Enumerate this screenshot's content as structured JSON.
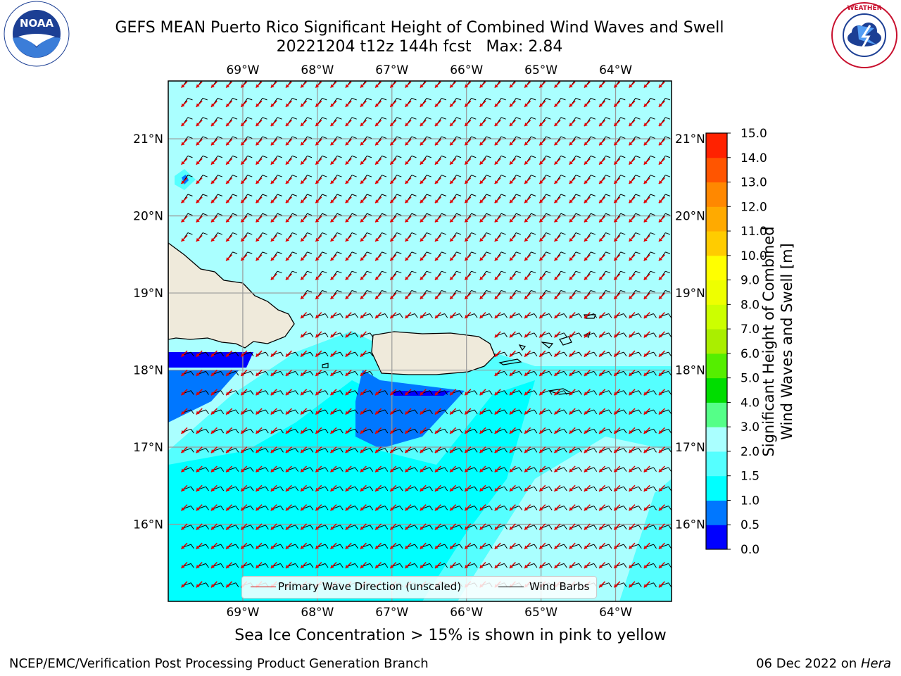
{
  "title": {
    "line1": "GEFS MEAN Puerto Rico Significant Height of Combined Wind Waves and Swell",
    "line2": "20221204 t12z 144h fcst   Max: 2.84"
  },
  "logos": {
    "left": "NOAA",
    "left_ring_text": "NATIONAL OCEANIC AND ATMOSPHERIC ADMINISTRATION · U.S. DEPARTMENT OF COMMERCE",
    "right_ring_text": "NATIONAL WEATHER SERVICE"
  },
  "map": {
    "lon_labels": [
      "69°W",
      "68°W",
      "67°W",
      "66°W",
      "65°W",
      "64°W"
    ],
    "lat_labels": [
      "21°N",
      "20°N",
      "19°N",
      "18°N",
      "17°N",
      "16°N"
    ],
    "lon_ticks": [
      -69,
      -68,
      -67,
      -66,
      -65,
      -64
    ],
    "lat_ticks": [
      21,
      20,
      19,
      18,
      17,
      16
    ],
    "extent": {
      "lon_min": -70.0,
      "lon_max": -63.25,
      "lat_min": 15.0,
      "lat_max": 21.75
    },
    "ocean_color": "#aaffff",
    "land_color": "#efeadb",
    "wave_arrow_color": "#e00000",
    "barb_color": "#000000",
    "grid": true
  },
  "legend": {
    "wave_label": "Primary Wave Direction (unscaled)",
    "barb_label": "Wind Barbs"
  },
  "colorbar": {
    "label_line1": "Significant Height of Combined",
    "label_line2": "Wind Waves and Swell [m]",
    "bounds": [
      "0.0",
      "0.5",
      "1.0",
      "1.5",
      "2.0",
      "3.0",
      "4.0",
      "5.0",
      "6.0",
      "7.0",
      "8.0",
      "9.0",
      "10.0",
      "11.0",
      "12.0",
      "13.0",
      "14.0",
      "15.0"
    ],
    "colors": [
      "#0000ff",
      "#0077ff",
      "#00ffff",
      "#55ffff",
      "#aaffff",
      "#55ff88",
      "#00dd00",
      "#55ee00",
      "#aaee00",
      "#ccff00",
      "#eeff00",
      "#ffff00",
      "#ffcc00",
      "#ffaa00",
      "#ff8800",
      "#ff5500",
      "#ff2200"
    ]
  },
  "caption": "Sea Ice Concentration > 15% is shown in pink to yellow",
  "footer": {
    "left": "NCEP/EMC/Verification Post Processing Product Generation Branch",
    "right_date": "06 Dec 2022 on ",
    "right_host": "Hera"
  }
}
